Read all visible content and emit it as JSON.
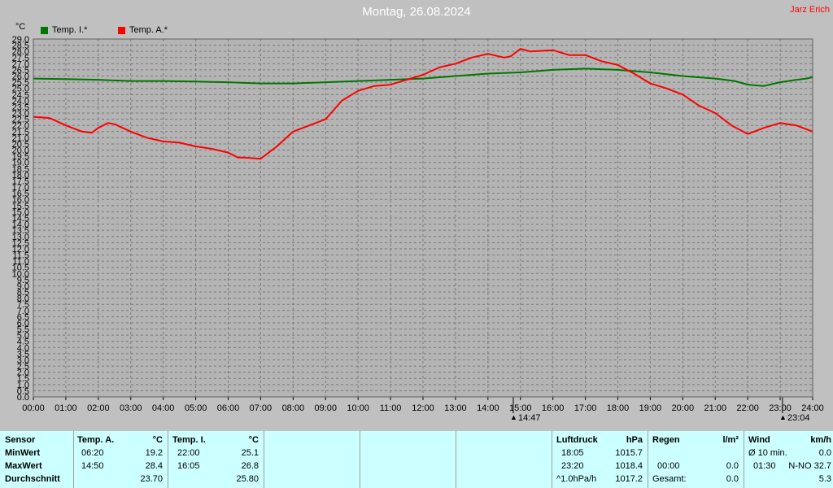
{
  "title": "Montag, 26.08.2024",
  "author": "Jarz Erich",
  "unit": "°C",
  "colors": {
    "background": "#c0c0c0",
    "plot_bg": "#b4b4b4",
    "title": "#ffffff",
    "temp_i": "#007700",
    "temp_a": "#ff0000",
    "table_bg": "#ccffff"
  },
  "chart_data": {
    "type": "line",
    "title": "Montag, 26.08.2024",
    "ylabel": "°C",
    "xlabel": "",
    "ylim": [
      0,
      29
    ],
    "y_step": 0.5,
    "xlim": [
      0,
      24
    ],
    "x_ticks": [
      "00:00",
      "01:00",
      "02:00",
      "03:00",
      "04:00",
      "05:00",
      "06:00",
      "07:00",
      "08:00",
      "09:00",
      "10:00",
      "11:00",
      "12:00",
      "13:00",
      "14:00",
      "15:00",
      "16:00",
      "17:00",
      "18:00",
      "19:00",
      "20:00",
      "21:00",
      "22:00",
      "23:00",
      "24:00"
    ],
    "grid": true,
    "legend": "top-left",
    "series": [
      {
        "name": "Temp. I.*",
        "color": "#007700",
        "x": [
          0,
          1,
          2,
          3,
          4,
          5,
          6,
          7,
          8,
          9,
          10,
          11,
          12,
          13,
          14,
          15,
          16,
          17,
          18,
          19,
          20,
          21,
          21.6,
          22,
          22.5,
          23,
          23.5,
          23.8,
          24
        ],
        "y": [
          25.8,
          25.75,
          25.7,
          25.6,
          25.6,
          25.55,
          25.5,
          25.4,
          25.4,
          25.5,
          25.6,
          25.7,
          25.8,
          26.0,
          26.2,
          26.3,
          26.5,
          26.6,
          26.5,
          26.3,
          26.0,
          25.8,
          25.6,
          25.3,
          25.2,
          25.5,
          25.7,
          25.8,
          25.9
        ]
      },
      {
        "name": "Temp. A.*",
        "color": "#ff0000",
        "x": [
          0,
          0.5,
          1,
          1.5,
          1.8,
          2,
          2.3,
          2.5,
          3,
          3.5,
          4,
          4.5,
          5,
          5.5,
          6,
          6.3,
          6.5,
          7,
          7.5,
          8,
          8.5,
          9,
          9.5,
          10,
          10.5,
          11,
          11.5,
          12,
          12.5,
          13,
          13.5,
          14,
          14.5,
          14.7,
          15,
          15.3,
          16,
          16.5,
          17,
          17.5,
          18,
          18.5,
          19,
          19.5,
          20,
          20.5,
          21,
          21.5,
          22,
          22.5,
          23,
          23.5,
          24
        ],
        "y": [
          22.7,
          22.6,
          22.0,
          21.5,
          21.4,
          21.8,
          22.2,
          22.1,
          21.5,
          21.0,
          20.7,
          20.6,
          20.3,
          20.1,
          19.8,
          19.4,
          19.4,
          19.3,
          20.3,
          21.5,
          22.0,
          22.5,
          24.0,
          24.8,
          25.2,
          25.3,
          25.7,
          26.1,
          26.7,
          27.0,
          27.5,
          27.8,
          27.5,
          27.6,
          28.2,
          28.0,
          28.1,
          27.7,
          27.7,
          27.2,
          26.9,
          26.2,
          25.4,
          25.0,
          24.5,
          23.6,
          23.0,
          22.0,
          21.3,
          21.8,
          22.2,
          22.0,
          21.5
        ]
      }
    ],
    "annotations": [
      {
        "x": 14.78,
        "label": "14:47"
      },
      {
        "x": 23.07,
        "label": "23:04"
      }
    ]
  },
  "table": {
    "sensor": {
      "header": "Sensor",
      "rows": [
        "MinWert",
        "MaxWert",
        "Durchschnitt"
      ]
    },
    "temp_a": {
      "header": "Temp. A.",
      "unit": "°C",
      "min_time": "06:20",
      "min_val": "19.2",
      "max_time": "14:50",
      "max_val": "28.4",
      "avg": "23.70"
    },
    "temp_i": {
      "header": "Temp. I.",
      "unit": "°C",
      "min_time": "22:00",
      "min_val": "25.1",
      "max_time": "16:05",
      "max_val": "26.8",
      "avg": "25.80"
    },
    "pressure": {
      "header": "Luftdruck",
      "unit": "hPa",
      "min_time": "18:05",
      "min_val": "1015.7",
      "max_time": "23:20",
      "max_val": "1018.4",
      "trend_label": "^1.0hPa/h",
      "trend_val": "1017.2"
    },
    "rain": {
      "header": "Regen",
      "unit": "l/m²",
      "max_time": "00:00",
      "max_val": "0.0",
      "total_label": "Gesamt:",
      "total_val": "0.0"
    },
    "wind": {
      "header": "Wind",
      "unit": "km/h",
      "avg_label": "Ø 10 min.",
      "avg_val": "0.0",
      "max_time": "01:30",
      "max_val": "N-NO 32.7",
      "avg2": "5.3"
    }
  }
}
